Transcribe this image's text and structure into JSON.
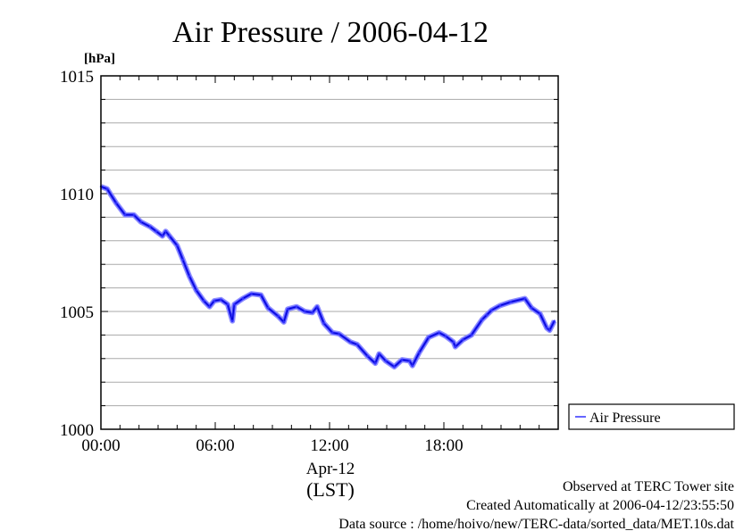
{
  "chart_data": {
    "type": "line",
    "title": "Air Pressure / 2006-04-12",
    "ylabel": "[hPa]",
    "xlabel": "Apr-12",
    "xlabel2": "(LST)",
    "ylim": [
      1000,
      1015
    ],
    "xlim": [
      0,
      24
    ],
    "yticks": [
      1000,
      1005,
      1010,
      1015
    ],
    "ytick_labels": [
      "1000",
      "1005",
      "1010",
      "1015"
    ],
    "xticks": [
      0,
      6,
      12,
      18
    ],
    "xtick_labels": [
      "00:00",
      "06:00",
      "12:00",
      "18:00"
    ],
    "grid": true,
    "legend_position": "right-bottom-outside",
    "series": [
      {
        "name": "Air Pressure",
        "color": "#3333ff",
        "x": [
          0,
          0.33,
          0.8,
          1.27,
          1.73,
          2.1,
          2.58,
          2.9,
          3.23,
          3.4,
          3.6,
          4.0,
          4.3,
          4.64,
          5.0,
          5.4,
          5.7,
          5.95,
          6.3,
          6.65,
          6.9,
          7.0,
          7.45,
          7.9,
          8.4,
          8.77,
          9.3,
          9.6,
          9.8,
          10.27,
          10.7,
          11.1,
          11.35,
          11.7,
          12.15,
          12.5,
          13.1,
          13.45,
          14.0,
          14.4,
          14.6,
          14.95,
          15.4,
          15.8,
          16.2,
          16.35,
          16.7,
          17.2,
          17.75,
          18.1,
          18.5,
          18.6,
          19.0,
          19.45,
          20.0,
          20.25,
          20.5,
          20.95,
          21.5,
          22.25,
          22.6,
          23.05,
          23.4,
          23.55,
          23.8
        ],
        "y": [
          1010.3,
          1010.2,
          1009.6,
          1009.1,
          1009.1,
          1008.8,
          1008.6,
          1008.4,
          1008.2,
          1008.4,
          1008.2,
          1007.8,
          1007.2,
          1006.5,
          1005.9,
          1005.45,
          1005.2,
          1005.45,
          1005.5,
          1005.3,
          1004.6,
          1005.3,
          1005.55,
          1005.75,
          1005.7,
          1005.15,
          1004.8,
          1004.55,
          1005.1,
          1005.2,
          1005.0,
          1004.95,
          1005.2,
          1004.5,
          1004.1,
          1004.05,
          1003.7,
          1003.6,
          1003.1,
          1002.8,
          1003.2,
          1002.9,
          1002.65,
          1002.95,
          1002.9,
          1002.7,
          1003.25,
          1003.9,
          1004.1,
          1003.95,
          1003.7,
          1003.5,
          1003.8,
          1004.0,
          1004.65,
          1004.85,
          1005.05,
          1005.25,
          1005.4,
          1005.55,
          1005.15,
          1004.9,
          1004.3,
          1004.2,
          1004.6
        ]
      }
    ]
  },
  "footer": {
    "observed": "Observed at TERC Tower site",
    "created": "Created Automatically at 2006-04-12/23:55:50",
    "source": "Data source : /home/hoivo/new/TERC-data/sorted_data/MET.10s.dat"
  }
}
